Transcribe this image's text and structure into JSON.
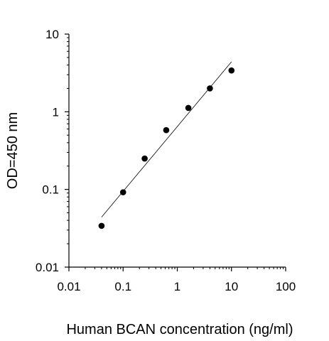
{
  "chart_data": {
    "type": "scatter",
    "title": "",
    "xlabel": "Human  BCAN concentration (ng/ml)",
    "ylabel": "OD=450 nm",
    "xscale": "log",
    "yscale": "log",
    "xlim": [
      0.01,
      100
    ],
    "ylim": [
      0.01,
      10
    ],
    "x_ticks": [
      {
        "value": 0.01,
        "label": "0.01"
      },
      {
        "value": 0.1,
        "label": "0.1"
      },
      {
        "value": 1,
        "label": "1"
      },
      {
        "value": 10,
        "label": "10"
      },
      {
        "value": 100,
        "label": "100"
      }
    ],
    "y_ticks": [
      {
        "value": 0.01,
        "label": "0.01"
      },
      {
        "value": 0.1,
        "label": "0.1"
      },
      {
        "value": 1,
        "label": "1"
      },
      {
        "value": 10,
        "label": "10"
      }
    ],
    "grid": false,
    "series": [
      {
        "points": [
          {
            "x": 0.04,
            "y": 0.034
          },
          {
            "x": 0.1,
            "y": 0.092
          },
          {
            "x": 0.25,
            "y": 0.25
          },
          {
            "x": 0.625,
            "y": 0.58
          },
          {
            "x": 1.6,
            "y": 1.12
          },
          {
            "x": 4.0,
            "y": 2.0
          },
          {
            "x": 10.0,
            "y": 3.4
          }
        ],
        "fit_line": {
          "x": [
            0.04,
            10.0
          ],
          "y": [
            0.044,
            4.4
          ]
        }
      }
    ]
  }
}
